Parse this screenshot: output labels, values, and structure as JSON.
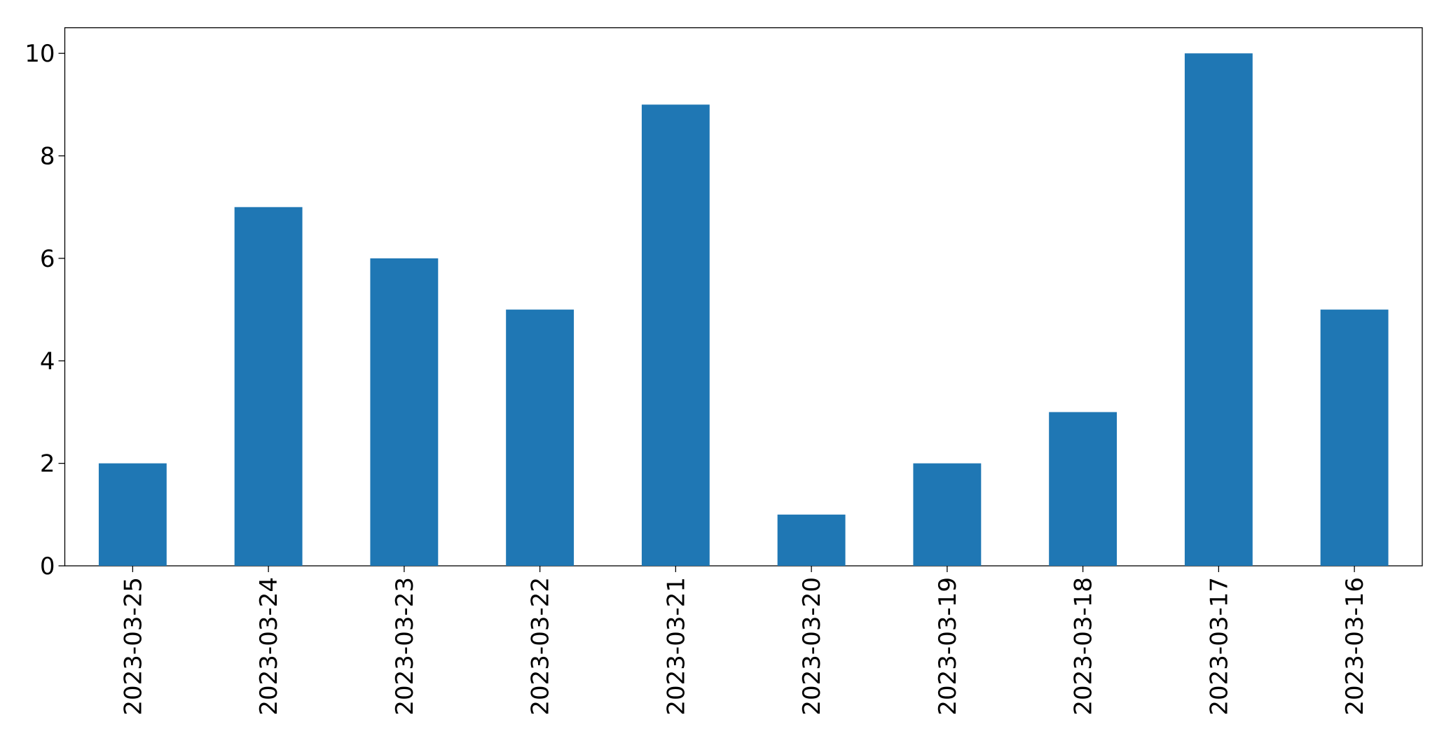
{
  "chart_data": {
    "type": "bar",
    "categories": [
      "2023-03-25",
      "2023-03-24",
      "2023-03-23",
      "2023-03-22",
      "2023-03-21",
      "2023-03-20",
      "2023-03-19",
      "2023-03-18",
      "2023-03-17",
      "2023-03-16"
    ],
    "values": [
      2,
      7,
      6,
      5,
      9,
      1,
      2,
      3,
      10,
      5
    ],
    "color": "#1f77b4",
    "ylim": [
      0,
      10.5
    ],
    "yticks": [
      0,
      2,
      4,
      6,
      8,
      10
    ],
    "grid": false
  }
}
